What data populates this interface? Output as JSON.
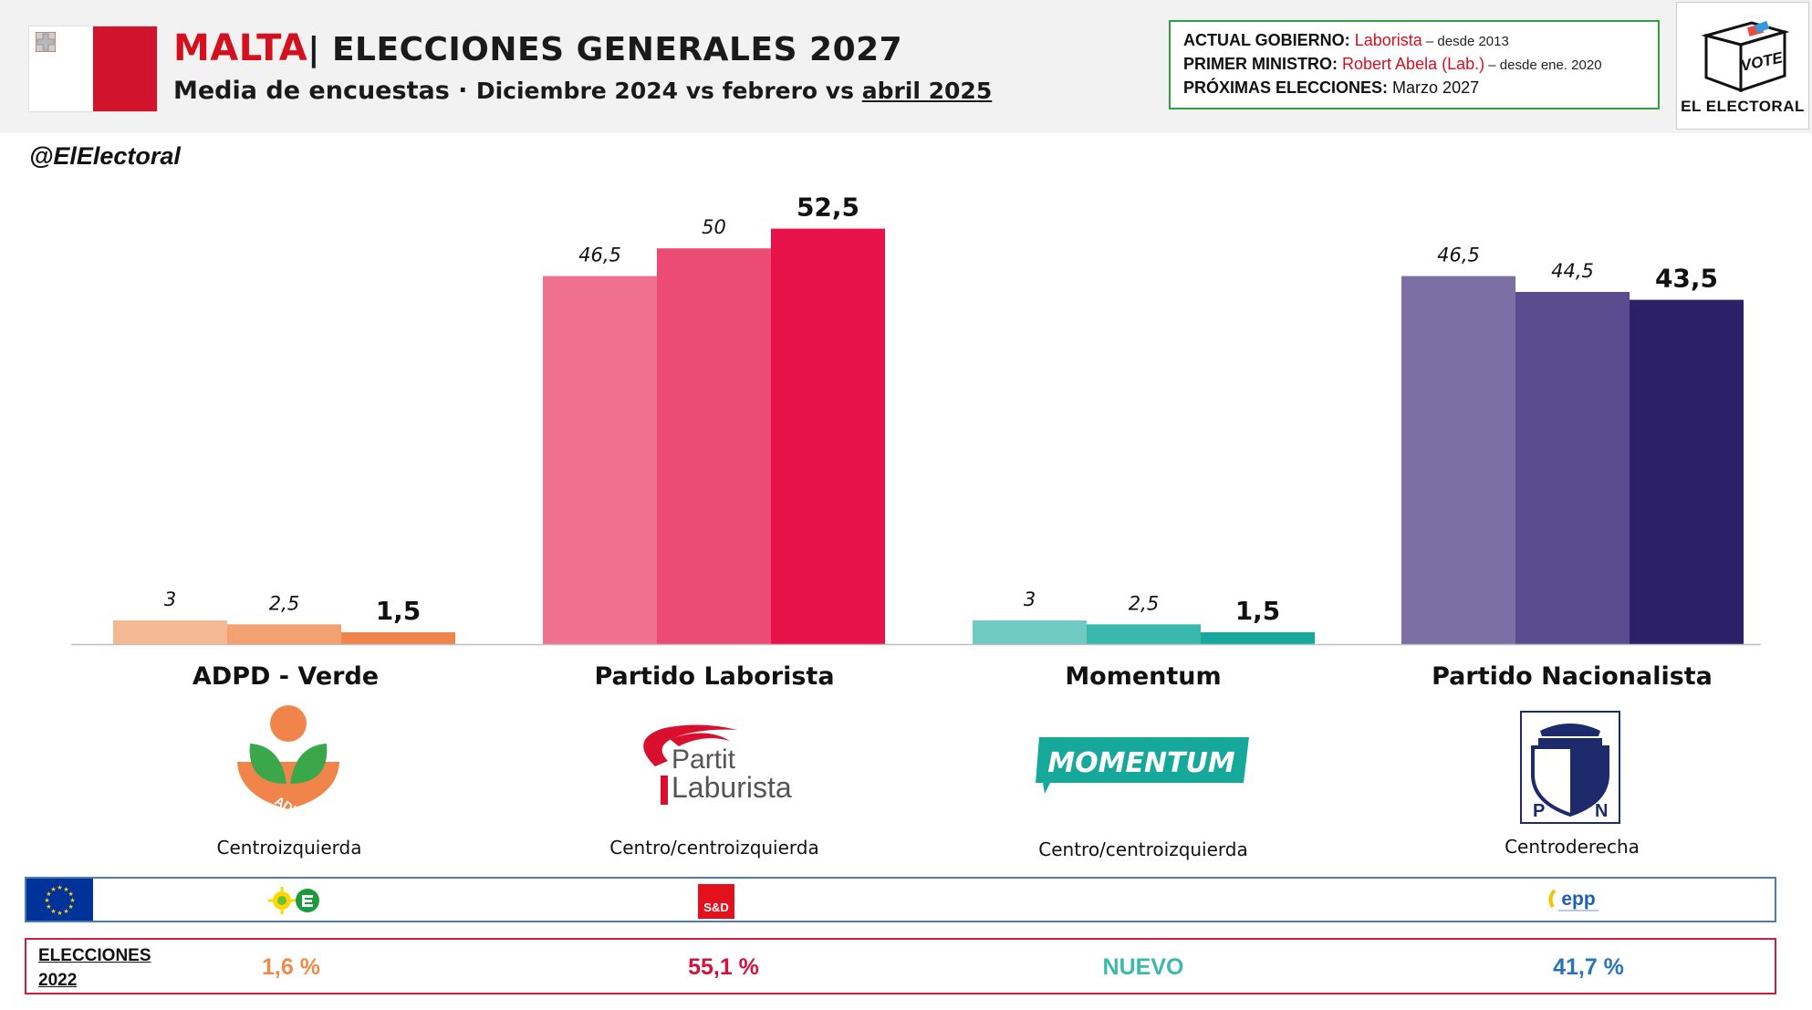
{
  "header": {
    "country": "MALTA",
    "title_rest": "| ELECCIONES GENERALES 2027",
    "subtitle_main": "Media de encuestas",
    "subtitle_sep": " · ",
    "subtitle_dates_a": "Diciembre 2024 vs febrero vs ",
    "subtitle_dates_b": "abril 2025"
  },
  "info": {
    "gov_label": "ACTUAL GOBIERNO:",
    "gov_value": "Laborista",
    "gov_since": " – desde 2013",
    "pm_label": "PRIMER MINISTRO:",
    "pm_value": "Robert Abela (Lab.)",
    "pm_since": " – desde ene. 2020",
    "next_label": "PRÓXIMAS ELECCIONES:",
    "next_value": "Marzo 2027"
  },
  "logo": {
    "vote_text": "VOTE",
    "brand": "EL ELECTORAL"
  },
  "handle": "@ElElectoral",
  "chart_data": {
    "type": "bar",
    "categories": [
      "ADPD - Verde",
      "Partido Laborista",
      "Momentum",
      "Partido Nacionalista"
    ],
    "series": [
      {
        "values": [
          3,
          46.5,
          3,
          46.5
        ]
      },
      {
        "values": [
          2.5,
          50,
          2.5,
          44.5
        ]
      },
      {
        "values": [
          1.5,
          52.5,
          1.5,
          43.5
        ]
      }
    ],
    "value_labels": [
      [
        "3",
        "2,5",
        "1,5"
      ],
      [
        "46,5",
        "50",
        "52,5"
      ],
      [
        "3",
        "2,5",
        "1,5"
      ],
      [
        "46,5",
        "44,5",
        "43,5"
      ]
    ],
    "colors": [
      [
        "#f5b894",
        "#f4a172",
        "#f0844a"
      ],
      [
        "#f07090",
        "#ec4c73",
        "#e8124a"
      ],
      [
        "#6ecac2",
        "#3bb8ad",
        "#17a89c"
      ],
      [
        "#7b6fa6",
        "#584b8e",
        "#2c2169"
      ]
    ],
    "ylim": [
      0,
      55
    ]
  },
  "parties": [
    {
      "name": "ADPD - Verde",
      "ideology": "Centroizquierda",
      "logo_text": "ADPD",
      "result_2022": "1,6 %",
      "result_color": "#f08a4b"
    },
    {
      "name": "Partido Laborista",
      "ideology": "Centro/centroizquierda",
      "logo_text_a": "Partit",
      "logo_text_b": "Laburista",
      "eu_group": "S&D",
      "result_2022": "55,1 %",
      "result_color": "#d4123e"
    },
    {
      "name": "Momentum",
      "ideology": "Centro/centroizquierda",
      "logo_text": "MOMENTUM",
      "result_2022": "NUEVO",
      "result_color": "#3cb8ad"
    },
    {
      "name": "Partido Nacionalista",
      "ideology": "Centroderecha",
      "logo_text_a": "P",
      "logo_text_b": "N",
      "eu_group": "epp",
      "result_2022": "41,7 %",
      "result_color": "#2a73b8"
    }
  ],
  "results_label_a": "ELECCIONES",
  "results_label_b": "2022"
}
